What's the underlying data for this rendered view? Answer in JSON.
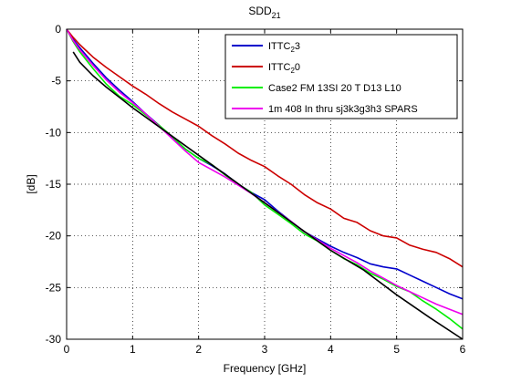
{
  "chart_data": {
    "type": "line",
    "title_main": "SDD",
    "title_sub": "21",
    "xlabel": "Frequency [GHz]",
    "ylabel": "[dB]",
    "xlim": [
      0,
      6
    ],
    "ylim": [
      -30,
      0
    ],
    "xticks": [
      "0",
      "1",
      "2",
      "3",
      "4",
      "5",
      "6"
    ],
    "yticks": [
      "0",
      "-5",
      "-10",
      "-15",
      "-20",
      "-25",
      "-30"
    ],
    "grid": true,
    "legend_position": "top-right",
    "series": [
      {
        "name_main": "ITTC",
        "name_sub": "2",
        "name_tail": "3",
        "color": "#0000cc",
        "x": [
          0,
          0.1,
          0.2,
          0.4,
          0.6,
          0.8,
          1.0,
          1.2,
          1.4,
          1.6,
          1.8,
          2.0,
          2.2,
          2.4,
          2.6,
          2.8,
          3.0,
          3.2,
          3.4,
          3.6,
          3.8,
          4.0,
          4.2,
          4.4,
          4.6,
          4.8,
          5.0,
          5.2,
          5.4,
          5.6,
          5.8,
          6.0
        ],
        "y": [
          0,
          -1.0,
          -1.8,
          -3.3,
          -4.7,
          -5.9,
          -7.0,
          -8.2,
          -9.3,
          -10.5,
          -11.6,
          -12.5,
          -13.2,
          -14.0,
          -15.0,
          -15.8,
          -16.5,
          -17.6,
          -18.6,
          -19.6,
          -20.3,
          -21.0,
          -21.6,
          -22.1,
          -22.7,
          -23.0,
          -23.2,
          -23.8,
          -24.4,
          -25.0,
          -25.6,
          -26.1
        ]
      },
      {
        "name_main": "ITTC",
        "name_sub": "2",
        "name_tail": "0",
        "color": "#cc0000",
        "x": [
          0,
          0.1,
          0.2,
          0.4,
          0.6,
          0.8,
          1.0,
          1.2,
          1.4,
          1.6,
          1.8,
          2.0,
          2.2,
          2.4,
          2.6,
          2.8,
          3.0,
          3.2,
          3.4,
          3.6,
          3.8,
          4.0,
          4.2,
          4.4,
          4.6,
          4.8,
          5.0,
          5.2,
          5.4,
          5.6,
          5.8,
          6.0
        ],
        "y": [
          0,
          -0.8,
          -1.5,
          -2.7,
          -3.7,
          -4.6,
          -5.5,
          -6.3,
          -7.2,
          -8.0,
          -8.7,
          -9.4,
          -10.3,
          -11.1,
          -12.0,
          -12.7,
          -13.3,
          -14.2,
          -15.0,
          -16.0,
          -16.8,
          -17.4,
          -18.3,
          -18.7,
          -19.5,
          -20.0,
          -20.2,
          -20.9,
          -21.3,
          -21.6,
          -22.2,
          -23.0
        ]
      },
      {
        "name_main": "Case2 FM 13SI 20 T D13 L10",
        "name_sub": "",
        "name_tail": "",
        "color": "#00ee00",
        "x": [
          0,
          0.1,
          0.2,
          0.4,
          0.6,
          0.8,
          1.0,
          1.2,
          1.4,
          1.6,
          1.8,
          2.0,
          2.2,
          2.4,
          2.6,
          2.8,
          3.0,
          3.2,
          3.4,
          3.6,
          3.8,
          4.0,
          4.2,
          4.4,
          4.6,
          4.8,
          5.0,
          5.2,
          5.4,
          5.6,
          5.8,
          6.0
        ],
        "y": [
          0,
          -1.2,
          -2.2,
          -3.8,
          -5.3,
          -6.5,
          -7.3,
          -8.3,
          -9.3,
          -10.4,
          -11.6,
          -12.5,
          -13.1,
          -14.1,
          -15.0,
          -15.8,
          -17.0,
          -17.9,
          -18.8,
          -19.8,
          -20.5,
          -21.4,
          -22.2,
          -22.8,
          -23.6,
          -24.2,
          -24.9,
          -25.4,
          -26.3,
          -27.1,
          -28.0,
          -29.0
        ]
      },
      {
        "name_main": "1m 408 In thru sj3k3g3h3 SPARS",
        "name_sub": "",
        "name_tail": "",
        "color": "#ee00ee",
        "x": [
          0,
          0.1,
          0.2,
          0.4,
          0.6,
          0.8,
          1.0,
          1.2,
          1.4,
          1.6,
          1.8,
          2.0,
          2.2,
          2.4,
          2.6,
          2.8,
          3.0,
          3.2,
          3.4,
          3.6,
          3.8,
          4.0,
          4.2,
          4.4,
          4.6,
          4.8,
          5.0,
          5.2,
          5.4,
          5.6,
          5.8,
          6.0
        ],
        "y": [
          0,
          -1.1,
          -2.0,
          -3.5,
          -4.9,
          -6.1,
          -7.1,
          -8.2,
          -9.4,
          -10.6,
          -11.8,
          -12.9,
          -13.6,
          -14.3,
          -15.1,
          -15.9,
          -16.8,
          -17.7,
          -18.6,
          -19.6,
          -20.4,
          -21.2,
          -21.9,
          -22.6,
          -23.4,
          -24.1,
          -24.8,
          -25.4,
          -26.0,
          -26.6,
          -27.1,
          -27.6
        ]
      },
      {
        "name_main": "",
        "name_sub": "",
        "name_tail": "",
        "color": "#000000",
        "x": [
          0.1,
          0.2,
          0.4,
          0.6,
          0.8,
          1.0,
          1.5,
          2.0,
          2.5,
          3.0,
          3.5,
          4.0,
          4.5,
          5.0,
          5.5,
          6.0
        ],
        "y": [
          -2.2,
          -3.2,
          -4.5,
          -5.6,
          -6.6,
          -7.6,
          -9.9,
          -12.2,
          -14.5,
          -16.8,
          -19.1,
          -21.4,
          -23.3,
          -25.7,
          -27.9,
          -30.0
        ]
      }
    ]
  }
}
